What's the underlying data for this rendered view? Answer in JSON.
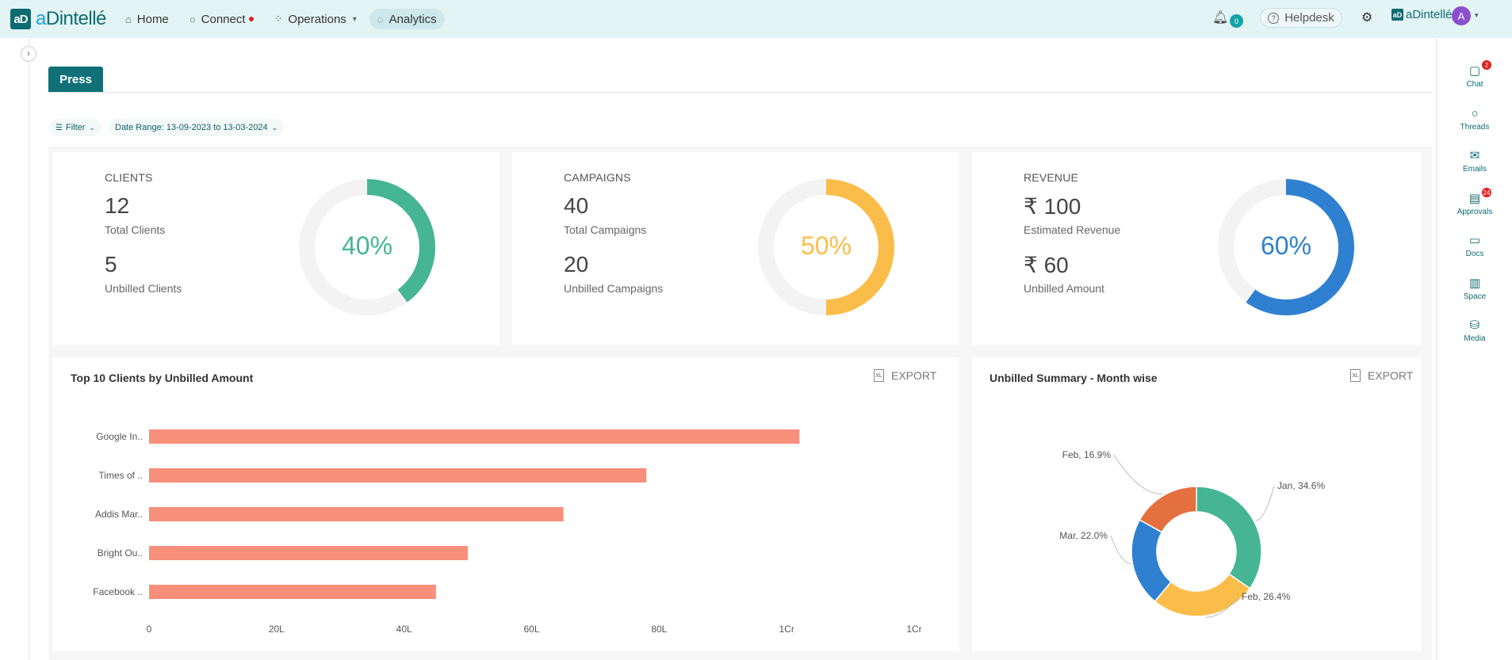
{
  "brand": {
    "mark": "aD",
    "name_prefix": "a",
    "name_rest": "Dintellé"
  },
  "nav": {
    "items": [
      {
        "label": "Home",
        "icon": "home-icon"
      },
      {
        "label": "Connect",
        "icon": "connect-icon"
      },
      {
        "label": "Operations",
        "icon": "operations-icon"
      },
      {
        "label": "Analytics",
        "icon": "analytics-icon"
      }
    ]
  },
  "topright": {
    "bell_count": "0",
    "helpdesk": "Helpdesk",
    "brand_mini": "aDintellé",
    "avatar": "A"
  },
  "rightrail": [
    {
      "label": "Chat",
      "icon": "chat-icon",
      "badge": "2"
    },
    {
      "label": "Threads",
      "icon": "threads-icon",
      "badge": ""
    },
    {
      "label": "Emails",
      "icon": "emails-icon",
      "badge": ""
    },
    {
      "label": "Approvals",
      "icon": "approvals-icon",
      "badge": "24"
    },
    {
      "label": "Docs",
      "icon": "docs-icon",
      "badge": ""
    },
    {
      "label": "Space",
      "icon": "space-icon",
      "badge": ""
    },
    {
      "label": "Media",
      "icon": "media-icon",
      "badge": ""
    }
  ],
  "tab": {
    "label": "Press"
  },
  "filters": {
    "filter_label": "Filter",
    "date_range": "Date Range: 13-09-2023 to 13-03-2024"
  },
  "stats": [
    {
      "title": "CLIENTS",
      "v1": "12",
      "l1": "Total Clients",
      "v2": "5",
      "l2": "Unbilled Clients",
      "pct": 40,
      "pct_label": "40%",
      "color": "#46b594"
    },
    {
      "title": "CAMPAIGNS",
      "v1": "40",
      "l1": "Total Campaigns",
      "v2": "20",
      "l2": "Unbilled Campaigns",
      "pct": 50,
      "pct_label": "50%",
      "color": "#fbbd4a"
    },
    {
      "title": "REVENUE",
      "v1": "₹ 100",
      "l1": "Estimated Revenue",
      "v2": "₹ 60",
      "l2": "Unbilled Amount",
      "pct": 60,
      "pct_label": "60%",
      "color": "#2f80d0"
    }
  ],
  "panels": {
    "bar_title": "Top 10 Clients by Unbilled Amount",
    "pie_title": "Unbilled Summary - Month wise",
    "export_label": "EXPORT",
    "xl_label": "XL"
  },
  "chart_data": [
    {
      "type": "bar",
      "orientation": "horizontal",
      "title": "Top 10 Clients by Unbilled Amount",
      "categories": [
        "Google In..",
        "Times of ..",
        "Addis Mar..",
        "Bright Ou..",
        "Facebook .."
      ],
      "values": [
        10200000,
        7800000,
        6500000,
        5000000,
        4500000
      ],
      "x_tick_labels": [
        "0",
        "20L",
        "40L",
        "60L",
        "80L",
        "1Cr",
        "1Cr"
      ],
      "xlim": [
        0,
        12000000
      ],
      "color": "#f78f7a"
    },
    {
      "type": "pie",
      "title": "Unbilled Summary - Month wise",
      "donut": true,
      "slices": [
        {
          "label": "Jan, 34.6%",
          "value": 34.6,
          "color": "#46b594"
        },
        {
          "label": "Feb, 26.4%",
          "value": 26.4,
          "color": "#fbbd4a"
        },
        {
          "label": "Mar, 22.0%",
          "value": 22.0,
          "color": "#2f80d0"
        },
        {
          "label": "Feb, 16.9%",
          "value": 16.9,
          "color": "#e5703f"
        }
      ]
    }
  ]
}
